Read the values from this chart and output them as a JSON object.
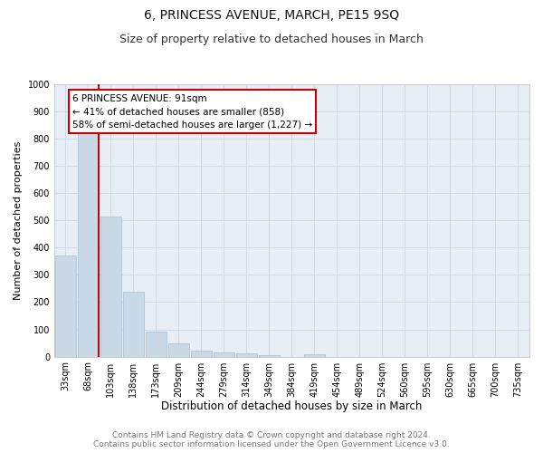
{
  "title": "6, PRINCESS AVENUE, MARCH, PE15 9SQ",
  "subtitle": "Size of property relative to detached houses in March",
  "xlabel": "Distribution of detached houses by size in March",
  "ylabel": "Number of detached properties",
  "categories": [
    "33sqm",
    "68sqm",
    "103sqm",
    "138sqm",
    "173sqm",
    "209sqm",
    "244sqm",
    "279sqm",
    "314sqm",
    "349sqm",
    "384sqm",
    "419sqm",
    "454sqm",
    "489sqm",
    "524sqm",
    "560sqm",
    "595sqm",
    "630sqm",
    "665sqm",
    "700sqm",
    "735sqm"
  ],
  "values": [
    370,
    820,
    515,
    238,
    93,
    50,
    22,
    15,
    12,
    5,
    0,
    10,
    0,
    0,
    0,
    0,
    0,
    0,
    0,
    0,
    0
  ],
  "bar_color": "#c9d9e8",
  "bar_edge_color": "#a8bfd0",
  "grid_color": "#ccd5e0",
  "background_color": "#e8eef5",
  "annotation_text": "6 PRINCESS AVENUE: 91sqm\n← 41% of detached houses are smaller (858)\n58% of semi-detached houses are larger (1,227) →",
  "annotation_box_color": "#ffffff",
  "annotation_border_color": "#cc0000",
  "vline_color": "#cc0000",
  "ylim": [
    0,
    1000
  ],
  "yticks": [
    0,
    100,
    200,
    300,
    400,
    500,
    600,
    700,
    800,
    900,
    1000
  ],
  "footer_text": "Contains HM Land Registry data © Crown copyright and database right 2024.\nContains public sector information licensed under the Open Government Licence v3.0.",
  "title_fontsize": 10,
  "subtitle_fontsize": 9,
  "xlabel_fontsize": 8.5,
  "ylabel_fontsize": 8,
  "tick_fontsize": 7,
  "annotation_fontsize": 7.5,
  "footer_fontsize": 6.5
}
